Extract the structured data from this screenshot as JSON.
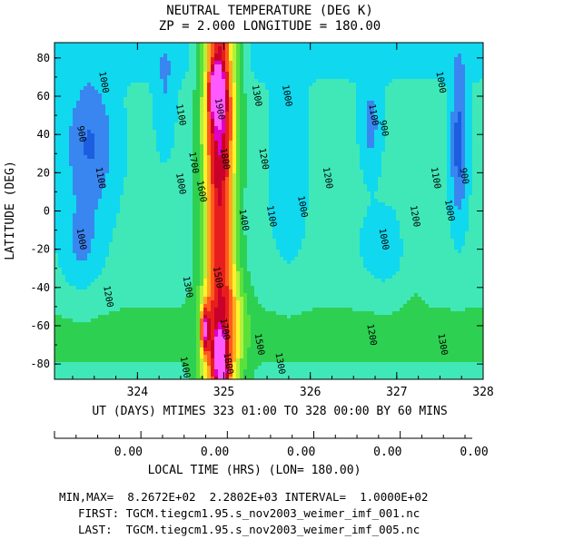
{
  "title_line1": "NEUTRAL TEMPERATURE (DEG K)",
  "title_line2": "ZP =    2.000 LONGITUDE =    180.00",
  "chart_data": {
    "type": "heatmap",
    "xlabel": "UT (DAYS) MTIMES 323 01:00 TO 328 00:00 BY   60 MINS",
    "ylabel": "LATITUDE (DEG)",
    "xlim": [
      323.04,
      328.0
    ],
    "ylim": [
      -88,
      88
    ],
    "x_ticks": [
      "324",
      "325",
      "326",
      "327",
      "328"
    ],
    "y_ticks": [
      "80",
      "60",
      "40",
      "20",
      "0",
      "-20",
      "-40",
      "-60",
      "-80"
    ],
    "grid": false,
    "min": 826.72,
    "max": 2280.2,
    "interval": 100,
    "contour_labels": [
      {
        "text": "900",
        "x": 323.32,
        "y": 40
      },
      {
        "text": "1000",
        "x": 323.58,
        "y": 67
      },
      {
        "text": "1100",
        "x": 323.54,
        "y": 17
      },
      {
        "text": "1000",
        "x": 323.32,
        "y": -15
      },
      {
        "text": "1200",
        "x": 323.63,
        "y": -45
      },
      {
        "text": "1100",
        "x": 324.47,
        "y": 50
      },
      {
        "text": "1000",
        "x": 324.47,
        "y": 14
      },
      {
        "text": "1300",
        "x": 324.55,
        "y": -40
      },
      {
        "text": "1400",
        "x": 324.52,
        "y": -82
      },
      {
        "text": "1700",
        "x": 324.62,
        "y": 25
      },
      {
        "text": "1600",
        "x": 324.71,
        "y": 10
      },
      {
        "text": "1900",
        "x": 324.92,
        "y": 53
      },
      {
        "text": "1800",
        "x": 324.98,
        "y": 27
      },
      {
        "text": "1500",
        "x": 324.9,
        "y": -35
      },
      {
        "text": "1700",
        "x": 324.98,
        "y": -62
      },
      {
        "text": "1800",
        "x": 325.02,
        "y": -80
      },
      {
        "text": "1400",
        "x": 325.2,
        "y": -5
      },
      {
        "text": "1300",
        "x": 325.35,
        "y": 60
      },
      {
        "text": "1200",
        "x": 325.43,
        "y": 27
      },
      {
        "text": "1100",
        "x": 325.52,
        "y": -3
      },
      {
        "text": "1500",
        "x": 325.38,
        "y": -70
      },
      {
        "text": "1300",
        "x": 325.62,
        "y": -80
      },
      {
        "text": "1000",
        "x": 325.7,
        "y": 60
      },
      {
        "text": "1000",
        "x": 325.88,
        "y": 2
      },
      {
        "text": "1200",
        "x": 326.17,
        "y": 17
      },
      {
        "text": "1100",
        "x": 326.7,
        "y": 50
      },
      {
        "text": "900",
        "x": 326.82,
        "y": 43
      },
      {
        "text": "1000",
        "x": 326.82,
        "y": -15
      },
      {
        "text": "1200",
        "x": 326.68,
        "y": -65
      },
      {
        "text": "1200",
        "x": 327.18,
        "y": -3
      },
      {
        "text": "1100",
        "x": 327.42,
        "y": 17
      },
      {
        "text": "1000",
        "x": 327.48,
        "y": 67
      },
      {
        "text": "1000",
        "x": 327.58,
        "y": 0
      },
      {
        "text": "900",
        "x": 327.75,
        "y": 18
      },
      {
        "text": "1300",
        "x": 327.5,
        "y": -70
      }
    ]
  },
  "local_time": {
    "labels": [
      "0.00",
      "0.00",
      "0.00",
      "0.00",
      "0.00"
    ],
    "xlabel": "LOCAL TIME (HRS) (LON= 180.00)"
  },
  "footer": {
    "minmax": "MIN,MAX=  8.2672E+02  2.2802E+03 INTERVAL=  1.0000E+02",
    "first": "FIRST: TGCM.tiegcm1.95.s_nov2003_weimer_imf_001.nc",
    "last": "LAST:  TGCM.tiegcm1.95.s_nov2003_weimer_imf_005.nc"
  }
}
